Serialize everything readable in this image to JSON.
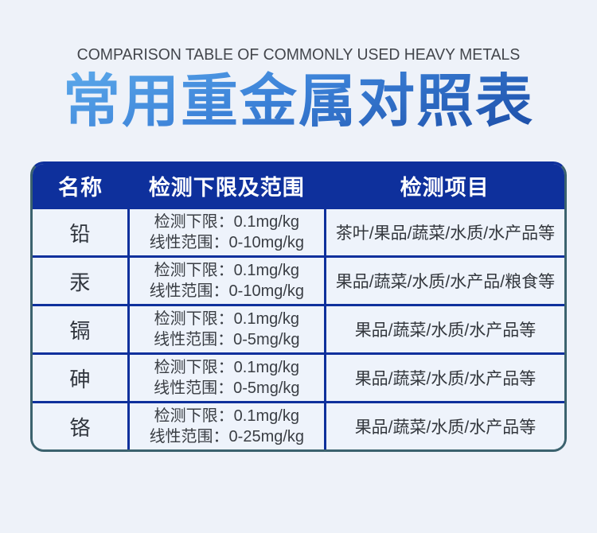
{
  "page": {
    "subtitle_en": "COMPARISON TABLE OF COMMONLY USED HEAVY METALS",
    "title_zh": "常用重金属对照表"
  },
  "colors": {
    "page_bg": "#eef2f9",
    "cell_bg": "#eef3fb",
    "header_bg": "#0e309c",
    "grid_line": "#0e309c",
    "outer_border": "#3b626e",
    "title_gradient_start": "#62b1ee",
    "title_gradient_end": "#16449f",
    "subtitle_text": "#43464c"
  },
  "table": {
    "headers": [
      "名称",
      "检测下限及范围",
      "检测项目"
    ],
    "rows": [
      {
        "name": "铅",
        "limit": "检测下限：0.1mg/kg",
        "range": "线性范围：0-10mg/kg",
        "items": "茶叶/果品/蔬菜/水质/水产品等"
      },
      {
        "name": "汞",
        "limit": "检测下限：0.1mg/kg",
        "range": "线性范围：0-10mg/kg",
        "items": "果品/蔬菜/水质/水产品/粮食等"
      },
      {
        "name": "镉",
        "limit": "检测下限：0.1mg/kg",
        "range": "线性范围：0-5mg/kg",
        "items": "果品/蔬菜/水质/水产品等"
      },
      {
        "name": "砷",
        "limit": "检测下限：0.1mg/kg",
        "range": "线性范围：0-5mg/kg",
        "items": "果品/蔬菜/水质/水产品等"
      },
      {
        "name": "铬",
        "limit": "检测下限：0.1mg/kg",
        "range": "线性范围：0-25mg/kg",
        "items": "果品/蔬菜/水质/水产品等"
      }
    ]
  }
}
